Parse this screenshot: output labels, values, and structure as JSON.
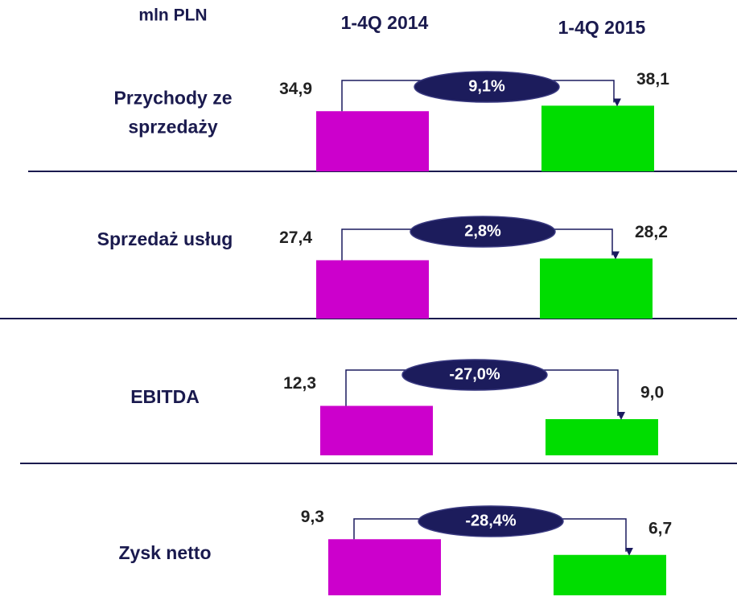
{
  "header": {
    "unit": "mln PLN",
    "periods": [
      "1-4Q 2014",
      "1-4Q 2015"
    ]
  },
  "colors": [
    "#cc00cc",
    "#00dd00"
  ],
  "chart_data": [
    {
      "type": "bar",
      "title": "Przychody ze sprzedaży",
      "values": [
        34.9,
        38.1
      ],
      "value_labels": [
        "34,9",
        "38,1"
      ],
      "change": 9.1,
      "change_label": "9,1%",
      "ylim": [
        0,
        42
      ]
    },
    {
      "type": "bar",
      "title": "Sprzedaż usług",
      "values": [
        27.4,
        28.2
      ],
      "value_labels": [
        "27,4",
        "28,2"
      ],
      "change": 2.8,
      "change_label": "2,8%",
      "ylim": [
        0,
        34
      ]
    },
    {
      "type": "bar",
      "title": "EBITDA",
      "values": [
        12.3,
        9.0
      ],
      "value_labels": [
        "12,3",
        "9,0"
      ],
      "change": -27.0,
      "change_label": "-27,0%",
      "ylim": [
        0,
        18
      ]
    },
    {
      "type": "bar",
      "title": "Zysk netto",
      "values": [
        9.3,
        6.7
      ],
      "value_labels": [
        "9,3",
        "6,7"
      ],
      "change": -28.4,
      "change_label": "-28,4%",
      "ylim": [
        0,
        12
      ]
    }
  ]
}
